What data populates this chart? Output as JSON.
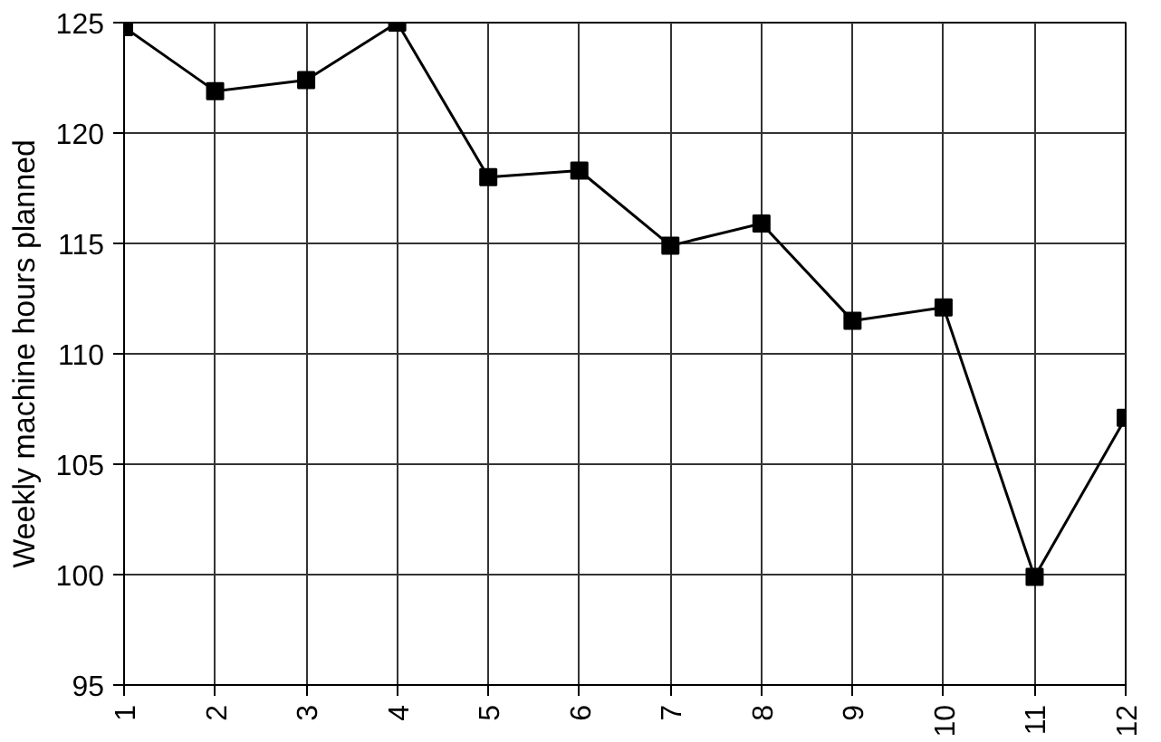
{
  "chart_data": {
    "type": "line",
    "ylabel": "Weekly machine hours planned",
    "categories": [
      "1",
      "2",
      "3",
      "4",
      "5",
      "6",
      "7",
      "8",
      "9",
      "10",
      "11",
      "12"
    ],
    "series": [
      {
        "color": "#000000",
        "values": [
          124.8,
          121.9,
          122.4,
          125.0,
          118.0,
          118.3,
          114.9,
          115.9,
          111.5,
          112.1,
          99.9,
          107.1
        ]
      }
    ],
    "ylim": [
      95,
      125
    ],
    "yticks": [
      95,
      100,
      105,
      110,
      115,
      120,
      125
    ],
    "grid": true,
    "marker": "square",
    "line_style": "solid"
  }
}
